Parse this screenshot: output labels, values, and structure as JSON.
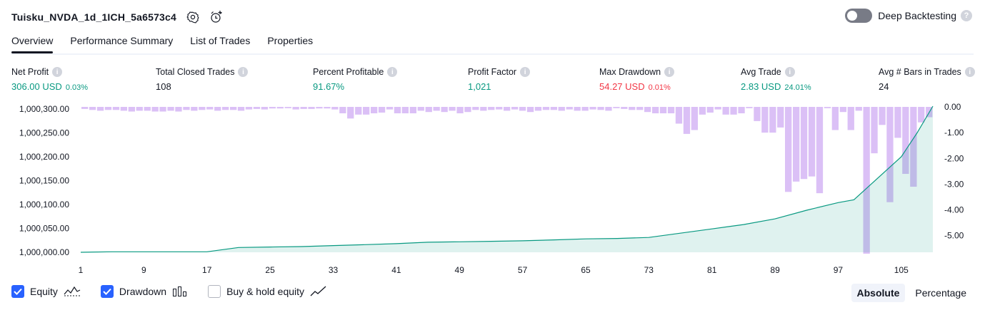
{
  "header": {
    "title": "Tuisku_NVDA_1d_1ICH_5a6573c4",
    "settings_icon": "gear-icon",
    "alert_icon": "add-alert-icon"
  },
  "deep_backtesting": {
    "label": "Deep Backtesting",
    "enabled": false,
    "help": "?"
  },
  "tabs": [
    {
      "label": "Overview",
      "active": true
    },
    {
      "label": "Performance Summary",
      "active": false
    },
    {
      "label": "List of Trades",
      "active": false
    },
    {
      "label": "Properties",
      "active": false
    }
  ],
  "metrics": [
    {
      "label": "Net Profit",
      "value": "306.00 USD",
      "pct": "0.03%",
      "color": "#089981"
    },
    {
      "label": "Total Closed Trades",
      "value": "108",
      "pct": "",
      "color": "#131722"
    },
    {
      "label": "Percent Profitable",
      "value": "91.67%",
      "pct": "",
      "color": "#089981"
    },
    {
      "label": "Profit Factor",
      "value": "1,021",
      "pct": "",
      "color": "#089981"
    },
    {
      "label": "Max Drawdown",
      "value": "54.27 USD",
      "pct": "0.01%",
      "color": "#f23645"
    },
    {
      "label": "Avg Trade",
      "value": "2.83 USD",
      "pct": "24.01%",
      "color": "#089981"
    },
    {
      "label": "Avg # Bars in Trades",
      "value": "24",
      "pct": "",
      "color": "#131722"
    }
  ],
  "chart_data": {
    "type": "area",
    "left_axis_ticks": [
      "1,000,300.00",
      "1,000,250.00",
      "1,000,200.00",
      "1,000,150.00",
      "1,000,100.00",
      "1,000,050.00",
      "1,000,000.00"
    ],
    "left_ylim": [
      1000000,
      1000300
    ],
    "right_axis_ticks": [
      "0.00",
      "-1.00",
      "-2.00",
      "-3.00",
      "-4.00",
      "-5.00"
    ],
    "right_ylim": [
      -5.7,
      0
    ],
    "x_ticks": [
      "1",
      "9",
      "17",
      "25",
      "33",
      "41",
      "49",
      "57",
      "65",
      "73",
      "81",
      "89",
      "97",
      "105"
    ],
    "xlim": [
      1,
      109
    ],
    "series": [
      {
        "name": "Equity",
        "color": "#089981",
        "x": [
          1,
          5,
          9,
          13,
          17,
          21,
          25,
          29,
          33,
          37,
          41,
          45,
          49,
          53,
          57,
          61,
          65,
          69,
          73,
          77,
          81,
          85,
          89,
          93,
          97,
          99,
          101,
          103,
          105,
          107,
          109
        ],
        "y": [
          1000000,
          1000001,
          1000001,
          1000001,
          1000001,
          1000010,
          1000011,
          1000012,
          1000014,
          1000016,
          1000018,
          1000021,
          1000022,
          1000023,
          1000024,
          1000026,
          1000028,
          1000029,
          1000031,
          1000040,
          1000049,
          1000058,
          1000070,
          1000088,
          1000104,
          1000110,
          1000140,
          1000170,
          1000200,
          1000250,
          1000306
        ]
      },
      {
        "name": "Drawdown",
        "color": "#d5b5f5",
        "values": [
          -0.08,
          -0.12,
          -0.15,
          -0.12,
          -0.12,
          -0.15,
          -0.18,
          -0.15,
          -0.15,
          -0.18,
          -0.18,
          -0.15,
          -0.18,
          -0.12,
          -0.15,
          -0.12,
          -0.1,
          -0.15,
          -0.12,
          -0.12,
          -0.15,
          -0.1,
          -0.08,
          -0.1,
          -0.06,
          -0.06,
          -0.05,
          -0.1,
          -0.08,
          -0.08,
          -0.06,
          -0.06,
          -0.1,
          -0.25,
          -0.45,
          -0.3,
          -0.3,
          -0.25,
          -0.22,
          -0.1,
          -0.25,
          -0.25,
          -0.25,
          -0.15,
          -0.2,
          -0.15,
          -0.2,
          -0.15,
          -0.25,
          -0.2,
          -0.12,
          -0.15,
          -0.12,
          -0.1,
          -0.15,
          -0.1,
          -0.15,
          -0.2,
          -0.15,
          -0.12,
          -0.12,
          -0.15,
          -0.1,
          -0.15,
          -0.15,
          -0.1,
          -0.12,
          -0.15,
          -0.05,
          -0.08,
          -0.12,
          -0.12,
          -0.2,
          -0.25,
          -0.25,
          -0.25,
          -0.65,
          -1.05,
          -0.9,
          -0.3,
          -0.22,
          -0.1,
          -0.3,
          -0.3,
          -0.25,
          -0.05,
          -0.55,
          -1.0,
          -1.0,
          -0.8,
          -3.3,
          -2.9,
          -2.8,
          -2.7,
          -3.35,
          -0.05,
          -0.9,
          -0.2,
          -0.9,
          -0.15,
          -5.7,
          -1.8,
          -0.7,
          -3.7,
          -1.2,
          -2.6,
          -3.1,
          -0.6,
          -0.4
        ]
      }
    ]
  },
  "legend": [
    {
      "label": "Equity",
      "checked": true,
      "icon": "equity-area-icon"
    },
    {
      "label": "Drawdown",
      "checked": true,
      "icon": "drawdown-bars-icon"
    },
    {
      "label": "Buy & hold equity",
      "checked": false,
      "icon": "buy-hold-line-icon"
    }
  ],
  "view_mode": {
    "absolute": "Absolute",
    "percentage": "Percentage",
    "selected": "Absolute"
  }
}
